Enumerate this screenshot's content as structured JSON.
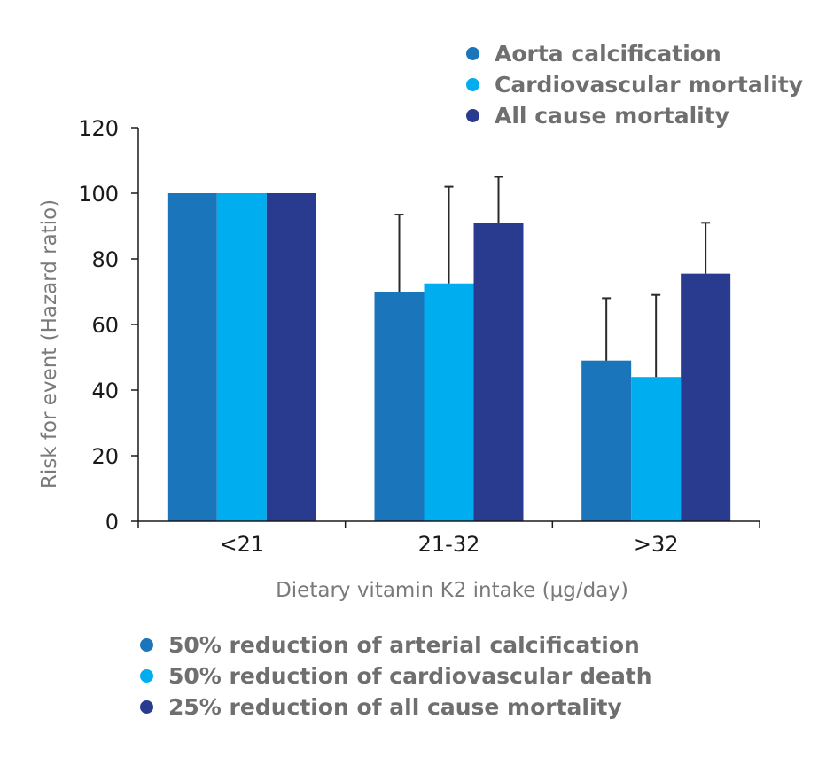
{
  "chart_data": {
    "type": "bar",
    "title": "",
    "xlabel": "Dietary vitamin K2 intake (µg/day)",
    "ylabel": "Risk for event (Hazard ratio)",
    "ylim": [
      0,
      120
    ],
    "yticks": [
      0,
      20,
      40,
      60,
      80,
      100,
      120
    ],
    "grid": false,
    "legend_placement": "top-right",
    "categories": [
      "<21",
      "21-32",
      ">32"
    ],
    "series": [
      {
        "name": "Aorta calcification",
        "color": "#1b75bb",
        "values": [
          100,
          70,
          49
        ],
        "error_upper": [
          null,
          93.5,
          68
        ]
      },
      {
        "name": "Cardiovascular mortality",
        "color": "#00aeef",
        "values": [
          100,
          72.5,
          44
        ],
        "error_upper": [
          null,
          102,
          69
        ]
      },
      {
        "name": "All cause mortality",
        "color": "#283b8f",
        "values": [
          100,
          91,
          75.5
        ],
        "error_upper": [
          null,
          105,
          91
        ]
      }
    ],
    "annotations": [
      {
        "text": "50% reduction of arterial calcification",
        "color": "#1b75bb"
      },
      {
        "text": "50% reduction of cardiovascular death",
        "color": "#00aeef"
      },
      {
        "text": "25% reduction of all cause mortality",
        "color": "#283b8f"
      }
    ]
  }
}
